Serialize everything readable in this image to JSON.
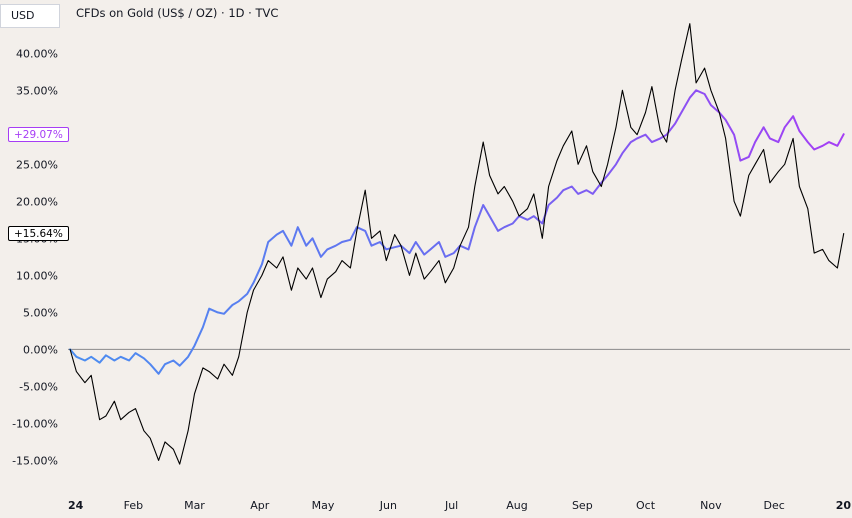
{
  "header": {
    "currency_label": "USD",
    "symbol_title": "CFDs on Gold (US$ / OZ) · 1D · TVC"
  },
  "badges": {
    "purple_value": "+29.07%",
    "black_value": "+15.64%"
  },
  "colors": {
    "background": "#f3efeb",
    "comparison_start": "#4b8ef0",
    "comparison_end": "#a63df5",
    "main_series": "#000000",
    "zero_line": "#8a8a8a"
  },
  "chart_data": {
    "type": "line",
    "x_axis": {
      "labels": [
        "24",
        "Feb",
        "Mar",
        "Apr",
        "May",
        "Jun",
        "Jul",
        "Aug",
        "Sep",
        "Oct",
        "Nov",
        "Dec",
        "20"
      ],
      "range": [
        "2024-01-01",
        "2025-01-06"
      ]
    },
    "y_axis": {
      "tick_labels": [
        "40.00%",
        "35.00%",
        "25.00%",
        "20.00%",
        "15.00%",
        "10.00%",
        "5.00%",
        "0.00%",
        "-5.00%",
        "-10.00%",
        "-15.00%"
      ],
      "range": [
        -19,
        44.5
      ],
      "unit": "%"
    },
    "series": [
      {
        "color": "gradient #4b8ef0 to #a63df5",
        "last_value": 29.07,
        "x": [
          "2024-01-02",
          "2024-01-05",
          "2024-01-09",
          "2024-01-12",
          "2024-01-16",
          "2024-01-19",
          "2024-01-23",
          "2024-01-26",
          "2024-01-30",
          "2024-02-02",
          "2024-02-06",
          "2024-02-09",
          "2024-02-13",
          "2024-02-16",
          "2024-02-20",
          "2024-02-23",
          "2024-02-27",
          "2024-03-01",
          "2024-03-05",
          "2024-03-08",
          "2024-03-12",
          "2024-03-15",
          "2024-03-19",
          "2024-03-22",
          "2024-03-26",
          "2024-03-29",
          "2024-04-02",
          "2024-04-05",
          "2024-04-09",
          "2024-04-12",
          "2024-04-16",
          "2024-04-19",
          "2024-04-23",
          "2024-04-26",
          "2024-04-30",
          "2024-05-03",
          "2024-05-07",
          "2024-05-10",
          "2024-05-14",
          "2024-05-17",
          "2024-05-21",
          "2024-05-24",
          "2024-05-28",
          "2024-05-31",
          "2024-06-04",
          "2024-06-07",
          "2024-06-11",
          "2024-06-14",
          "2024-06-18",
          "2024-06-21",
          "2024-06-25",
          "2024-06-28",
          "2024-07-02",
          "2024-07-05",
          "2024-07-09",
          "2024-07-12",
          "2024-07-16",
          "2024-07-19",
          "2024-07-23",
          "2024-07-26",
          "2024-07-30",
          "2024-08-02",
          "2024-08-06",
          "2024-08-09",
          "2024-08-13",
          "2024-08-16",
          "2024-08-20",
          "2024-08-23",
          "2024-08-27",
          "2024-08-30",
          "2024-09-03",
          "2024-09-06",
          "2024-09-10",
          "2024-09-13",
          "2024-09-17",
          "2024-09-20",
          "2024-09-24",
          "2024-09-27",
          "2024-10-01",
          "2024-10-04",
          "2024-10-08",
          "2024-10-11",
          "2024-10-15",
          "2024-10-18",
          "2024-10-22",
          "2024-10-25",
          "2024-10-29",
          "2024-11-01",
          "2024-11-05",
          "2024-11-08",
          "2024-11-12",
          "2024-11-15",
          "2024-11-19",
          "2024-11-22",
          "2024-11-26",
          "2024-11-29",
          "2024-12-03",
          "2024-12-06",
          "2024-12-10",
          "2024-12-13",
          "2024-12-17",
          "2024-12-20",
          "2024-12-24",
          "2024-12-27",
          "2024-12-31",
          "2025-01-03"
        ],
        "y": [
          0.0,
          -1.0,
          -1.5,
          -1.0,
          -1.8,
          -0.8,
          -1.5,
          -1.0,
          -1.5,
          -0.5,
          -1.2,
          -2.0,
          -3.3,
          -2.0,
          -1.5,
          -2.2,
          -1.0,
          0.5,
          3.0,
          5.5,
          5.0,
          4.8,
          6.0,
          6.5,
          7.5,
          9.0,
          11.5,
          14.5,
          15.5,
          16.0,
          14.0,
          16.5,
          14.0,
          15.0,
          12.5,
          13.5,
          14.0,
          14.5,
          14.8,
          16.5,
          16.0,
          14.0,
          14.5,
          13.5,
          13.8,
          14.0,
          13.0,
          14.5,
          12.8,
          13.5,
          14.5,
          12.5,
          13.0,
          14.0,
          13.5,
          16.5,
          19.5,
          18.0,
          16.0,
          16.5,
          17.0,
          18.0,
          17.5,
          18.0,
          17.0,
          19.5,
          20.5,
          21.5,
          22.0,
          21.0,
          21.5,
          21.0,
          22.5,
          23.5,
          25.0,
          26.5,
          28.0,
          28.5,
          29.0,
          28.0,
          28.5,
          29.0,
          30.5,
          32.0,
          34.0,
          35.0,
          34.5,
          33.0,
          32.0,
          31.0,
          29.0,
          25.5,
          26.0,
          28.0,
          30.0,
          28.5,
          28.0,
          30.0,
          31.5,
          29.5,
          28.0,
          27.0,
          27.5,
          28.0,
          27.5,
          29.07
        ]
      },
      {
        "color": "#000000",
        "last_value": 15.64,
        "x": [
          "2024-01-02",
          "2024-01-05",
          "2024-01-09",
          "2024-01-12",
          "2024-01-16",
          "2024-01-19",
          "2024-01-23",
          "2024-01-26",
          "2024-01-30",
          "2024-02-02",
          "2024-02-06",
          "2024-02-09",
          "2024-02-13",
          "2024-02-16",
          "2024-02-20",
          "2024-02-23",
          "2024-02-27",
          "2024-03-01",
          "2024-03-05",
          "2024-03-08",
          "2024-03-12",
          "2024-03-15",
          "2024-03-19",
          "2024-03-22",
          "2024-03-26",
          "2024-03-29",
          "2024-04-02",
          "2024-04-05",
          "2024-04-09",
          "2024-04-12",
          "2024-04-16",
          "2024-04-19",
          "2024-04-23",
          "2024-04-26",
          "2024-04-30",
          "2024-05-03",
          "2024-05-07",
          "2024-05-10",
          "2024-05-14",
          "2024-05-17",
          "2024-05-21",
          "2024-05-24",
          "2024-05-28",
          "2024-05-31",
          "2024-06-04",
          "2024-06-07",
          "2024-06-11",
          "2024-06-14",
          "2024-06-18",
          "2024-06-21",
          "2024-06-25",
          "2024-06-28",
          "2024-07-02",
          "2024-07-05",
          "2024-07-09",
          "2024-07-12",
          "2024-07-16",
          "2024-07-19",
          "2024-07-23",
          "2024-07-26",
          "2024-07-30",
          "2024-08-02",
          "2024-08-06",
          "2024-08-09",
          "2024-08-13",
          "2024-08-16",
          "2024-08-20",
          "2024-08-23",
          "2024-08-27",
          "2024-08-30",
          "2024-09-03",
          "2024-09-06",
          "2024-09-10",
          "2024-09-13",
          "2024-09-17",
          "2024-09-20",
          "2024-09-24",
          "2024-09-27",
          "2024-10-01",
          "2024-10-04",
          "2024-10-08",
          "2024-10-11",
          "2024-10-15",
          "2024-10-18",
          "2024-10-22",
          "2024-10-25",
          "2024-10-29",
          "2024-11-01",
          "2024-11-05",
          "2024-11-08",
          "2024-11-12",
          "2024-11-15",
          "2024-11-19",
          "2024-11-22",
          "2024-11-26",
          "2024-11-29",
          "2024-12-03",
          "2024-12-06",
          "2024-12-10",
          "2024-12-13",
          "2024-12-17",
          "2024-12-20",
          "2024-12-24",
          "2024-12-27",
          "2024-12-31",
          "2025-01-03"
        ],
        "y": [
          0.0,
          -3.0,
          -4.5,
          -3.5,
          -9.5,
          -9.0,
          -7.0,
          -9.5,
          -8.5,
          -8.0,
          -11.0,
          -12.0,
          -15.0,
          -12.5,
          -13.5,
          -15.5,
          -11.0,
          -6.0,
          -2.5,
          -3.0,
          -4.0,
          -2.0,
          -3.5,
          -1.0,
          5.0,
          8.0,
          10.0,
          12.0,
          11.0,
          12.5,
          8.0,
          11.0,
          9.5,
          11.0,
          7.0,
          9.5,
          10.5,
          12.0,
          11.0,
          16.0,
          21.5,
          15.0,
          16.0,
          12.0,
          15.5,
          14.0,
          10.0,
          13.0,
          9.5,
          10.5,
          12.0,
          9.0,
          11.0,
          14.0,
          16.5,
          22.0,
          28.0,
          23.5,
          21.0,
          22.0,
          20.0,
          18.0,
          19.0,
          21.0,
          15.0,
          22.0,
          25.5,
          27.5,
          29.5,
          25.0,
          27.5,
          24.0,
          22.0,
          25.0,
          30.0,
          35.0,
          30.0,
          29.0,
          32.0,
          35.5,
          29.5,
          28.0,
          35.0,
          39.0,
          44.0,
          36.0,
          38.0,
          35.0,
          32.0,
          28.5,
          20.0,
          18.0,
          23.5,
          25.0,
          27.0,
          22.5,
          24.0,
          25.0,
          28.5,
          22.0,
          19.0,
          13.0,
          13.5,
          12.0,
          11.0,
          15.64
        ]
      }
    ]
  }
}
